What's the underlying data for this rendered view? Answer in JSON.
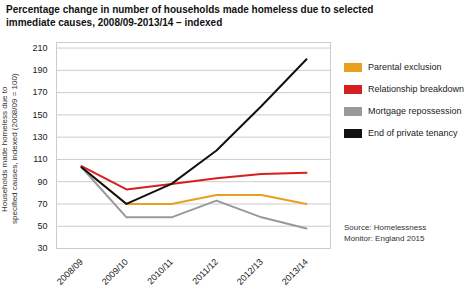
{
  "chart_data": {
    "type": "line",
    "title": "Percentage change in number of households made homeless due to selected\nimmediate causes, 2008/09-2013/14 – indexed",
    "ylabel": "Households made homeless due to\nspecified causes, indexed (2008/09 = 100)",
    "source": "Source: Homelessness\nMonitor: England 2015",
    "categories": [
      "2008/09",
      "2009/10",
      "2010/11",
      "2011/12",
      "2012/13",
      "2013/14"
    ],
    "series": [
      {
        "name": "Parental exclusion",
        "color": "#e8a020",
        "values": [
          103,
          70,
          70,
          78,
          78,
          70
        ]
      },
      {
        "name": "Relationship breakdown",
        "color": "#d42020",
        "values": [
          104,
          83,
          88,
          93,
          97,
          98
        ]
      },
      {
        "name": "Mortgage repossession",
        "color": "#999999",
        "values": [
          103,
          58,
          58,
          73,
          58,
          48
        ]
      },
      {
        "name": "End of private tenancy",
        "color": "#111111",
        "values": [
          103,
          70,
          88,
          118,
          158,
          200
        ]
      }
    ],
    "ylim": [
      30,
      215
    ],
    "yticks": [
      30,
      50,
      70,
      90,
      110,
      130,
      150,
      170,
      190,
      210
    ],
    "grid": true,
    "legend": "right"
  }
}
